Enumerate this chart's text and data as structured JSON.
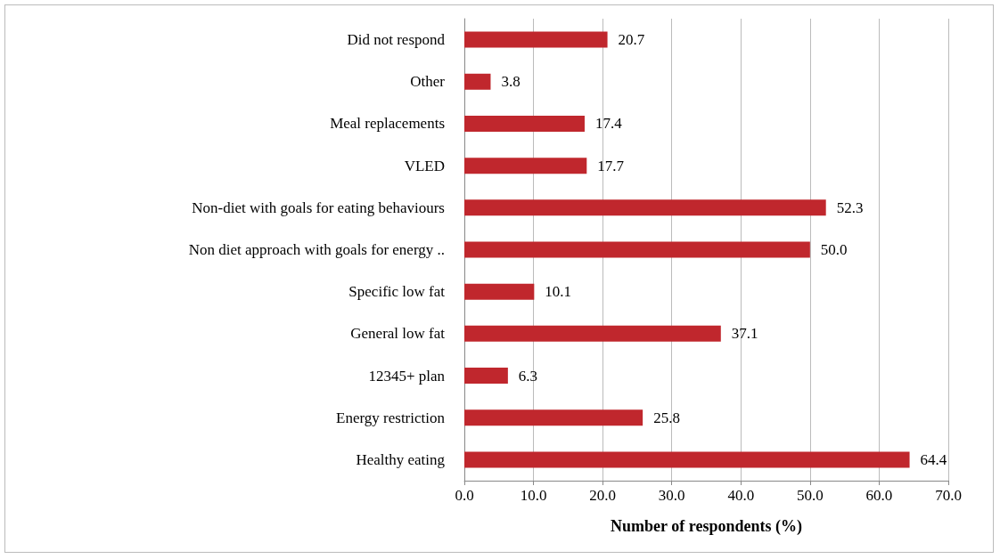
{
  "chart_data": {
    "type": "bar",
    "orientation": "horizontal",
    "xlabel": "Number of respondents (%)",
    "categories": [
      "Did not respond",
      "Other",
      "Meal replacements",
      "VLED",
      "Non-diet with goals for eating behaviours",
      "Non diet approach with goals for energy ..",
      "Specific low fat",
      "General low fat",
      "12345+ plan",
      "Energy restriction",
      "Healthy eating"
    ],
    "values": [
      20.7,
      3.8,
      17.4,
      17.7,
      52.3,
      50.0,
      10.1,
      37.1,
      6.3,
      25.8,
      64.4
    ],
    "value_labels": [
      "20.7",
      "3.8",
      "17.4",
      "17.7",
      "52.3",
      "50.0",
      "10.1",
      "37.1",
      "6.3",
      "25.8",
      "64.4"
    ],
    "color": "#c0272d",
    "xlim": [
      0,
      70
    ],
    "xticks": [
      {
        "value": 0,
        "label": "0.0"
      },
      {
        "value": 10,
        "label": "10.0"
      },
      {
        "value": 20,
        "label": "20.0"
      },
      {
        "value": 30,
        "label": "30.0"
      },
      {
        "value": 40,
        "label": "40.0"
      },
      {
        "value": 50,
        "label": "50.0"
      },
      {
        "value": 60,
        "label": "60.0"
      },
      {
        "value": 70,
        "label": "70.0"
      }
    ],
    "grid": "x"
  }
}
